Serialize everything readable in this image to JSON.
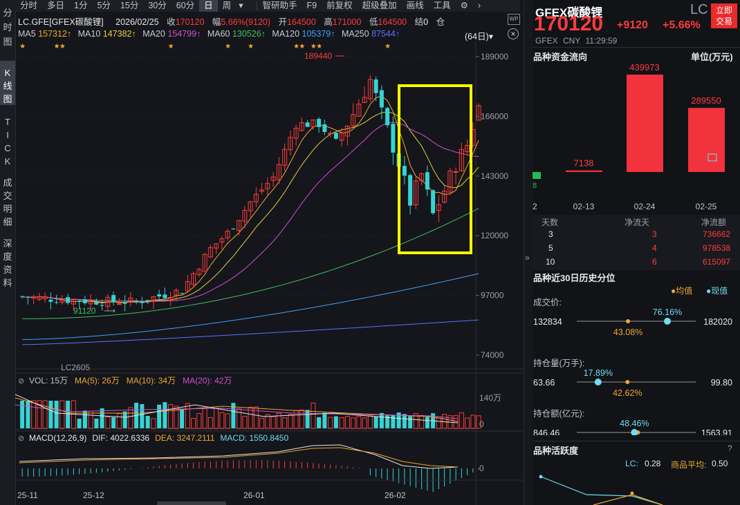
{
  "toolbar": {
    "items": [
      "分时",
      "多日",
      "1分",
      "5分",
      "15分",
      "30分",
      "60分",
      "日",
      "周",
      "▾",
      "智研助手",
      "F9",
      "前复权",
      "超级叠加",
      "画线",
      "工具"
    ],
    "active": "日"
  },
  "leftbar": {
    "tabs": [
      "分时图",
      "K线图",
      "TICK",
      "成交明细",
      "深度资料"
    ],
    "active": "K线图"
  },
  "info": {
    "symbol": "LC.GFE[GFEX碳酸锂]",
    "date": "2026/02/25",
    "close_label": "收",
    "close": "170120",
    "change_label": "幅",
    "change": "5.66%(9120)",
    "open_label": "开",
    "open": "164500",
    "high_label": "高",
    "high": "171000",
    "low_label": "低",
    "low": "164500",
    "settle_label": "结",
    "settle": "0",
    "cang_label": "仓"
  },
  "ma": {
    "items": [
      {
        "label": "MA5",
        "value": "157312↑",
        "color": "#e8e8e8",
        "vcolor": "#f0a830"
      },
      {
        "label": "MA10",
        "value": "147382↑",
        "color": "#e8e8e8",
        "vcolor": "#e8d040"
      },
      {
        "label": "MA20",
        "value": "154799↑",
        "color": "#e8e8e8",
        "vcolor": "#d050d0"
      },
      {
        "label": "MA60",
        "value": "130526↑",
        "color": "#e8e8e8",
        "vcolor": "#40c060"
      },
      {
        "label": "MA120",
        "value": "105379↑",
        "color": "#e8e8e8",
        "vcolor": "#40a0ff"
      },
      {
        "label": "MA250",
        "value": "87544↑",
        "color": "#e8e8e8",
        "vcolor": "#6070ff"
      }
    ],
    "period": "(64日)▾"
  },
  "chart_data": [
    {
      "type": "candlestick",
      "title": "LC.GFE[GFEX碳酸锂]",
      "y_ticks": [
        "189000",
        "166000",
        "143000",
        "120000",
        "97000",
        "74000"
      ],
      "ylim": [
        74000,
        189000
      ],
      "x_ticks": [
        "25-11",
        "25-12",
        "26-01",
        "26-02"
      ],
      "annotations": [
        "189440",
        "91120",
        "LC2605"
      ],
      "last": {
        "open": 164500,
        "high": 171000,
        "low": 164500,
        "close": 170120
      }
    },
    {
      "type": "bar",
      "title": "VOL",
      "legend": [
        "VOL: 15万",
        "MA(5): 26万",
        "MA(10): 34万",
        "MA(20): 42万"
      ],
      "y_ticks": [
        "140万",
        "0"
      ]
    },
    {
      "type": "bar",
      "title": "MACD(12,26,9)",
      "legend": [
        "MACD(12,26,9)",
        "DIF: 4022.6336",
        "DEA: 3247.2111",
        "MACD: 1550.8450"
      ],
      "y_ticks": [
        "0"
      ]
    }
  ],
  "rpanel": {
    "name": "GFEX碳酸锂",
    "code": "LC",
    "trade_btn": [
      "立即",
      "交易"
    ],
    "price": "170120",
    "chg": "+9120",
    "chgpct": "+5.66%",
    "exch": "GFEX",
    "ccy": "CNY",
    "time": "11:29:59",
    "flow_title": "品种资金流向",
    "flow_unit": "单位(万元)",
    "flow_chart": {
      "type": "bar",
      "categories": [
        "02-13",
        "02-24",
        "02-25"
      ],
      "values": [
        7138,
        439973,
        289550
      ],
      "left_cut_value": "8",
      "left_cut_label": "2"
    },
    "flow_table": {
      "headers": [
        "天数",
        "净流天",
        "净流额"
      ],
      "rows": [
        [
          "3",
          "3",
          "736662"
        ],
        [
          "5",
          "4",
          "978538"
        ],
        [
          "10",
          "6",
          "615097"
        ]
      ]
    },
    "hist_title": "品种近30日历史分位",
    "legend_avg": "●均值",
    "legend_now": "●现值",
    "hist": [
      {
        "label": "成交价:",
        "min": "132834",
        "max": "182020",
        "now": "76.16%",
        "avg": "43.08%",
        "now_v": 0.7616,
        "avg_v": 0.4308
      },
      {
        "label": "持仓量(万手):",
        "min": "63.66",
        "max": "99.80",
        "now": "17.89%",
        "avg": "42.62%",
        "now_v": 0.1789,
        "avg_v": 0.4262
      },
      {
        "label": "持仓额(亿元):",
        "min": "846.46",
        "max": "1563.91",
        "now": "48.46%",
        "avg": "51.46%",
        "now_v": 0.4846,
        "avg_v": 0.5146
      }
    ],
    "act_title": "品种活跃度",
    "act_q": "?",
    "act_lc_label": "LC:",
    "act_lc": "0.28",
    "act_avg_label": "商品平均:",
    "act_avg": "0.50",
    "collapse": "»"
  }
}
